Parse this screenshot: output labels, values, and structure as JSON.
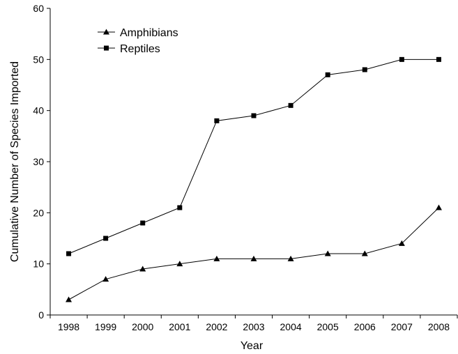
{
  "chart_data": {
    "type": "line",
    "title": "",
    "xlabel": "Year",
    "ylabel": "Cumulative Number of Species Imported",
    "categories": [
      "1998",
      "1999",
      "2000",
      "2001",
      "2002",
      "2003",
      "2004",
      "2005",
      "2006",
      "2007",
      "2008"
    ],
    "ylim": [
      0,
      60
    ],
    "yticks": [
      "0",
      "10",
      "20",
      "30",
      "40",
      "50",
      "60"
    ],
    "grid": false,
    "legend_position": "top-left",
    "series": [
      {
        "name": "Amphibians",
        "marker": "triangle",
        "color": "#000000",
        "values": [
          3,
          7,
          9,
          10,
          11,
          11,
          11,
          12,
          12,
          14,
          21
        ]
      },
      {
        "name": "Reptiles",
        "marker": "square",
        "color": "#000000",
        "values": [
          12,
          15,
          18,
          21,
          38,
          39,
          41,
          47,
          48,
          50,
          50
        ]
      }
    ]
  }
}
